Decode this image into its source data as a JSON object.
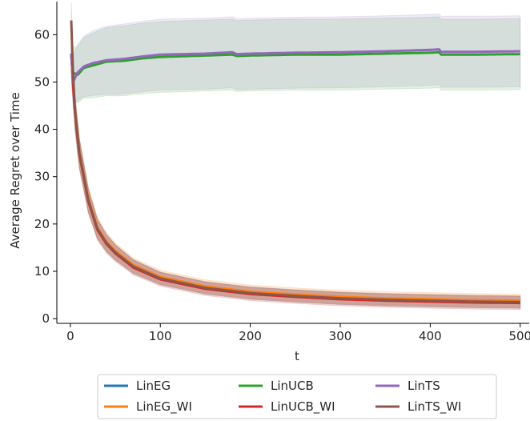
{
  "chart_data": {
    "type": "line",
    "title": "",
    "xlabel": "t",
    "ylabel": "Average Regret over Time",
    "xlim": [
      -15,
      510
    ],
    "ylim": [
      -1,
      67
    ],
    "xticks": [
      0,
      100,
      200,
      300,
      400,
      500
    ],
    "yticks": [
      0,
      10,
      20,
      30,
      40,
      50,
      60
    ],
    "grid": false,
    "legend_position": "bottom-center",
    "series": [
      {
        "name": "LinEG",
        "color": "#1f77b4",
        "group": "low",
        "band": 1.3,
        "values": [
          [
            1,
            56
          ],
          [
            3,
            50
          ],
          [
            5,
            44
          ],
          [
            10,
            35
          ],
          [
            20,
            25
          ],
          [
            30,
            19
          ],
          [
            40,
            16
          ],
          [
            50,
            14
          ],
          [
            70,
            11
          ],
          [
            100,
            8.5
          ],
          [
            150,
            6.5
          ],
          [
            200,
            5.4
          ],
          [
            250,
            4.8
          ],
          [
            300,
            4.3
          ],
          [
            350,
            4.0
          ],
          [
            400,
            3.8
          ],
          [
            450,
            3.6
          ],
          [
            500,
            3.5
          ]
        ]
      },
      {
        "name": "LinEG_WI",
        "color": "#ff7f0e",
        "group": "low",
        "band": 1.4,
        "values": [
          [
            1,
            56
          ],
          [
            3,
            50
          ],
          [
            5,
            44
          ],
          [
            10,
            35.2
          ],
          [
            20,
            25.3
          ],
          [
            30,
            19.3
          ],
          [
            40,
            16.3
          ],
          [
            50,
            14.3
          ],
          [
            70,
            11.3
          ],
          [
            100,
            8.8
          ],
          [
            150,
            6.8
          ],
          [
            200,
            5.7
          ],
          [
            250,
            5.1
          ],
          [
            300,
            4.6
          ],
          [
            350,
            4.3
          ],
          [
            400,
            4.1
          ],
          [
            450,
            3.9
          ],
          [
            500,
            3.8
          ]
        ]
      },
      {
        "name": "LinUCB",
        "color": "#2ca02c",
        "group": "high",
        "band": 7.5,
        "values": [
          [
            1,
            56
          ],
          [
            3,
            52
          ],
          [
            8,
            51.5
          ],
          [
            15,
            53
          ],
          [
            25,
            53.5
          ],
          [
            40,
            54.3
          ],
          [
            60,
            54.5
          ],
          [
            80,
            55
          ],
          [
            100,
            55.3
          ],
          [
            150,
            55.6
          ],
          [
            180,
            55.8
          ],
          [
            185,
            55.5
          ],
          [
            200,
            55.6
          ],
          [
            250,
            55.8
          ],
          [
            300,
            55.8
          ],
          [
            350,
            56
          ],
          [
            400,
            56.2
          ],
          [
            410,
            56.3
          ],
          [
            412,
            55.8
          ],
          [
            450,
            55.8
          ],
          [
            500,
            55.9
          ]
        ]
      },
      {
        "name": "LinUCB_WI",
        "color": "#d62728",
        "group": "low",
        "band": 1.4,
        "values": [
          [
            1,
            56
          ],
          [
            3,
            49.8
          ],
          [
            5,
            43.8
          ],
          [
            10,
            34.8
          ],
          [
            20,
            24.8
          ],
          [
            30,
            18.8
          ],
          [
            40,
            15.8
          ],
          [
            50,
            13.8
          ],
          [
            70,
            10.8
          ],
          [
            100,
            8.3
          ],
          [
            150,
            6.3
          ],
          [
            200,
            5.2
          ],
          [
            250,
            4.6
          ],
          [
            300,
            4.1
          ],
          [
            350,
            3.8
          ],
          [
            400,
            3.6
          ],
          [
            450,
            3.4
          ],
          [
            500,
            3.3
          ]
        ]
      },
      {
        "name": "LinTS",
        "color": "#9467bd",
        "group": "high",
        "band": 7.5,
        "values": [
          [
            1,
            56
          ],
          [
            3,
            50
          ],
          [
            8,
            52
          ],
          [
            15,
            53.3
          ],
          [
            25,
            54
          ],
          [
            40,
            54.6
          ],
          [
            60,
            54.9
          ],
          [
            80,
            55.4
          ],
          [
            100,
            55.8
          ],
          [
            150,
            56
          ],
          [
            180,
            56.3
          ],
          [
            185,
            55.9
          ],
          [
            200,
            56
          ],
          [
            250,
            56.2
          ],
          [
            300,
            56.3
          ],
          [
            350,
            56.5
          ],
          [
            400,
            56.8
          ],
          [
            410,
            56.9
          ],
          [
            412,
            56.4
          ],
          [
            450,
            56.4
          ],
          [
            500,
            56.5
          ]
        ]
      },
      {
        "name": "LinTS_WI",
        "color": "#8c564b",
        "group": "low",
        "band": 1.3,
        "values": [
          [
            1,
            63
          ],
          [
            3,
            52
          ],
          [
            5,
            44
          ],
          [
            10,
            35
          ],
          [
            20,
            25
          ],
          [
            30,
            19
          ],
          [
            40,
            16
          ],
          [
            50,
            14
          ],
          [
            70,
            11
          ],
          [
            100,
            8.5
          ],
          [
            150,
            6.5
          ],
          [
            200,
            5.4
          ],
          [
            250,
            4.8
          ],
          [
            300,
            4.3
          ],
          [
            350,
            4.0
          ],
          [
            400,
            3.8
          ],
          [
            450,
            3.6
          ],
          [
            500,
            3.5
          ]
        ]
      }
    ]
  }
}
